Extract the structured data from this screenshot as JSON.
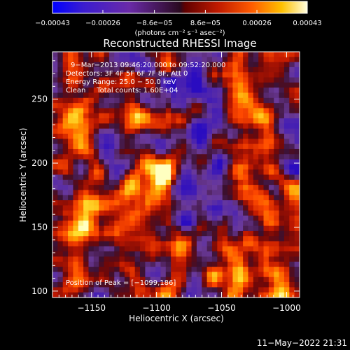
{
  "chart_data": {
    "type": "heatmap",
    "title": "Reconstructed RHESSI Image",
    "xlabel": "Heliocentric X (arcsec)",
    "ylabel": "Heliocentric Y (arcsec)",
    "xlim": [
      -1180,
      -990
    ],
    "ylim": [
      95,
      287
    ],
    "xticks": [
      -1150,
      -1100,
      -1050,
      -1000
    ],
    "xtick_labels": [
      "−1150",
      "−1100",
      "−1050",
      "−1000"
    ],
    "yticks": [
      100,
      150,
      200,
      250
    ],
    "ytick_labels": [
      "100",
      "150",
      "200",
      "250"
    ],
    "colorbar": {
      "range": [
        -0.00043,
        0.00043
      ],
      "ticks": [
        -0.00043,
        -0.00026,
        -8.6e-05,
        8.6e-05,
        0.00026,
        0.00043
      ],
      "tick_labels": [
        "−0.00043",
        "−0.00026",
        "−8.6e−05",
        "8.6e−05",
        "0.00026",
        "0.00043"
      ],
      "units": "(photons cm⁻² s⁻¹ asec⁻²)"
    },
    "annotations": [
      "9−Mar−2013 09:46:20.000 to 09:52:20.000",
      "Detectors: 3F 4F 5F 6F 7F 8F, Att 0",
      "Energy Range: 25.0 − 50.0 keV",
      "Clean     Total counts: 1.60E+04",
      "Position of Peak = [−1099,186]"
    ],
    "peak": {
      "x": -1099,
      "y": 186
    }
  },
  "footer": {
    "timestamp": "11−May−2022 21:31"
  },
  "colors": {
    "background": "#000000",
    "foreground": "#ffffff",
    "colormap": [
      "#0000ff",
      "#5a2da0",
      "#6a3a8a",
      "#b01818",
      "#ff3000",
      "#ff9000",
      "#ffe000",
      "#ffffff"
    ]
  }
}
